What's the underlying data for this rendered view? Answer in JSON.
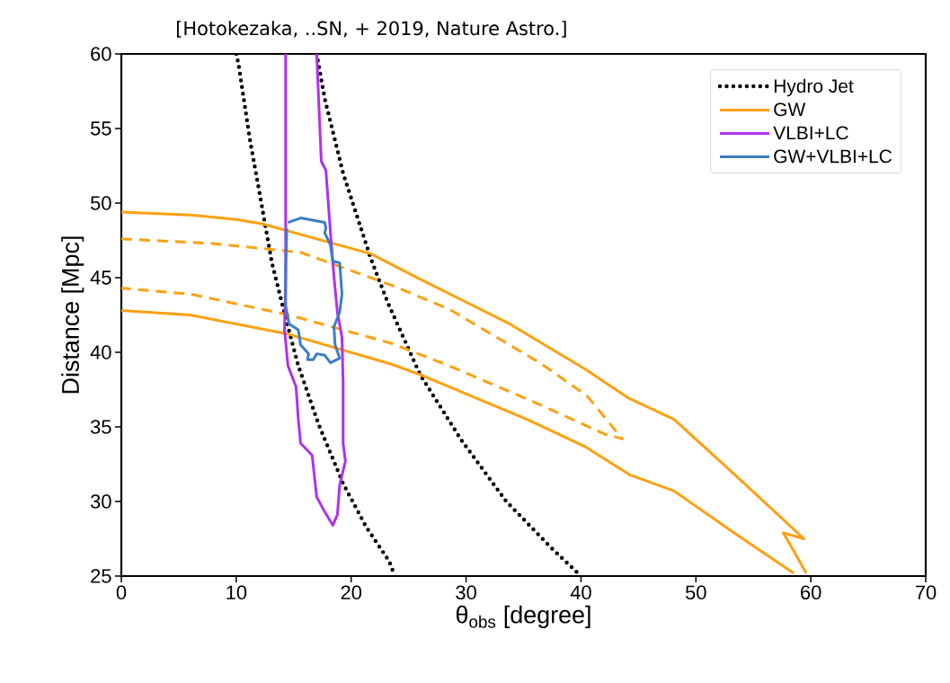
{
  "chart_data": {
    "type": "line",
    "xlabel": "θ$_{obs}$ [degree]",
    "ylabel": "Distance [Mpc]",
    "annotations": [
      "[Hotokezaka, ..SN, + 2019, Nature Astro.]"
    ],
    "xlim": [
      0,
      70
    ],
    "ylim": [
      25,
      60
    ],
    "xticks": [
      0,
      10,
      20,
      30,
      40,
      50,
      60,
      70
    ],
    "yticks": [
      25,
      30,
      35,
      40,
      45,
      50,
      55,
      60
    ],
    "grid": false,
    "legend": "top right",
    "series": [
      {
        "name": "Hydro Jet",
        "color": "#000000",
        "line_style": "dotted",
        "x": [
          10.0,
          10.2,
          11.2,
          12.0,
          13.1,
          14.3,
          15.4,
          17.2,
          19.3,
          21.3,
          23.3,
          23.8
        ],
        "values": [
          60,
          59.3,
          54.2,
          50.8,
          46.0,
          42.3,
          39.1,
          35.1,
          31.2,
          28.3,
          26.0,
          25
        ]
      },
      {
        "color": "#000000",
        "line_style": "dotted",
        "x": [
          17.0,
          17.7,
          19.3,
          21.7,
          23.2,
          26.0,
          29.6,
          33.5,
          37.4,
          40.0
        ],
        "values": [
          60,
          57.0,
          52.0,
          46.3,
          43.3,
          38.5,
          34.1,
          30.0,
          26.9,
          25
        ]
      },
      {
        "name": "GW",
        "color": "#ffa010",
        "line_style": "solid",
        "x": [
          0,
          6.0,
          10.0,
          12.3,
          21.7,
          26.0,
          33.8,
          40.3,
          44.2,
          48.1,
          53.8,
          59.4,
          57.6,
          58.5,
          59.6
        ],
        "values": [
          49.4,
          49.2,
          48.9,
          48.6,
          46.6,
          44.9,
          41.9,
          38.9,
          36.9,
          35.5,
          31.5,
          27.5,
          27.9,
          26.7,
          25.2
        ]
      },
      {
        "color": "#ffa010",
        "line_style": "solid",
        "x": [
          0,
          6.0,
          14.6,
          23.5,
          26.0,
          35.3,
          40.3,
          44.2,
          48.1,
          53.3,
          58.5
        ],
        "values": [
          42.8,
          42.5,
          41.2,
          39.2,
          38.5,
          35.5,
          33.7,
          31.8,
          30.7,
          27.9,
          25.2
        ]
      },
      {
        "color": "#ffa010",
        "line_style": "dashed",
        "x": [
          0,
          7.8,
          15.6,
          23.5,
          28.5,
          36.4,
          40.5,
          43.6,
          42.1,
          36.4,
          28.5,
          23.5,
          14.6,
          6.0,
          0
        ],
        "values": [
          47.6,
          47.3,
          46.7,
          44.5,
          42.9,
          39.3,
          37.1,
          34.2,
          34.5,
          36.5,
          39.1,
          40.6,
          42.5,
          43.9,
          44.3
        ]
      },
      {
        "name": "VLBI+LC",
        "color": "#b030f0",
        "line_style": "solid",
        "x": [
          14.3,
          14.3,
          14.2,
          14.5,
          15.2,
          15.4,
          15.6,
          16.6,
          17.0,
          17.7,
          18.4,
          18.8,
          19.0,
          19.5,
          19.3,
          19.3,
          19.2,
          18.8,
          18.5,
          18.2,
          17.8,
          17.4,
          17.0
        ],
        "values": [
          60,
          45.0,
          41.5,
          39.1,
          37.7,
          35.5,
          33.9,
          33.1,
          30.3,
          29.3,
          28.4,
          29.1,
          31.1,
          32.7,
          33.9,
          38.0,
          41.0,
          42.7,
          45.1,
          48.0,
          52.2,
          52.8,
          60
        ]
      },
      {
        "name": "GW+VLBI+LC",
        "color": "#3a7ec0",
        "line_style": "solid",
        "x": [
          14.5,
          15.6,
          17.7,
          17.8,
          17.7,
          18.2,
          18.4,
          19.0,
          19.2,
          19.0,
          18.5,
          18.6,
          19.0,
          18.2,
          17.7,
          17.0,
          16.7,
          16.2,
          16.3,
          15.6,
          15.4,
          14.6,
          14.3,
          14.3,
          14.4
        ],
        "values": [
          48.7,
          49.0,
          48.7,
          48.3,
          48.0,
          47.2,
          46.1,
          46.0,
          43.9,
          42.7,
          41.7,
          40.5,
          39.6,
          39.3,
          39.8,
          39.9,
          39.5,
          39.5,
          39.9,
          40.5,
          41.5,
          41.9,
          43.1,
          45.5,
          48.3
        ]
      }
    ]
  }
}
